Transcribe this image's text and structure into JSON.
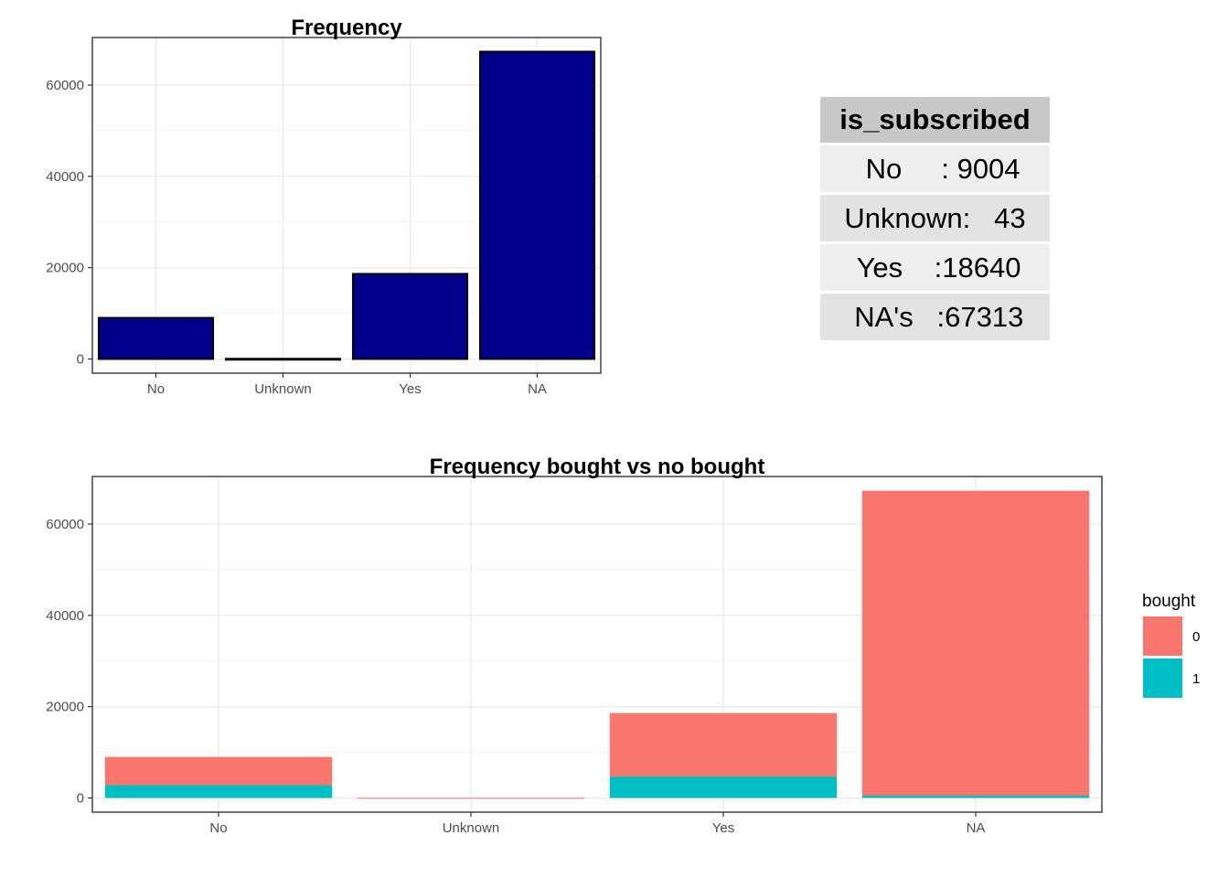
{
  "chart_data": [
    {
      "type": "bar",
      "title": "Frequency",
      "categories": [
        "No",
        "Unknown",
        "Yes",
        "NA"
      ],
      "values": [
        9004,
        43,
        18640,
        67313
      ],
      "fill_color": "#00008B",
      "yticks": [
        0,
        20000,
        40000,
        60000
      ],
      "ylim": [
        0,
        70000
      ],
      "grid": true
    },
    {
      "type": "bar",
      "stacked": true,
      "title": "Frequency bought vs no bought",
      "categories": [
        "No",
        "Unknown",
        "Yes",
        "NA"
      ],
      "series": [
        {
          "name": "0",
          "color": "#F8766D",
          "values": [
            6200,
            43,
            13900,
            66800
          ]
        },
        {
          "name": "1",
          "color": "#00BFC4",
          "values": [
            2800,
            0,
            4700,
            500
          ]
        }
      ],
      "yticks": [
        0,
        20000,
        40000,
        60000
      ],
      "ylim": [
        0,
        70000
      ],
      "legend": {
        "title": "bought",
        "position": "right"
      },
      "grid": true
    }
  ],
  "summary_table": {
    "header": "is_subscribed",
    "rows": [
      "  No     : 9004",
      "Unknown:   43",
      " Yes    :18640",
      " NA's   :67313"
    ]
  }
}
